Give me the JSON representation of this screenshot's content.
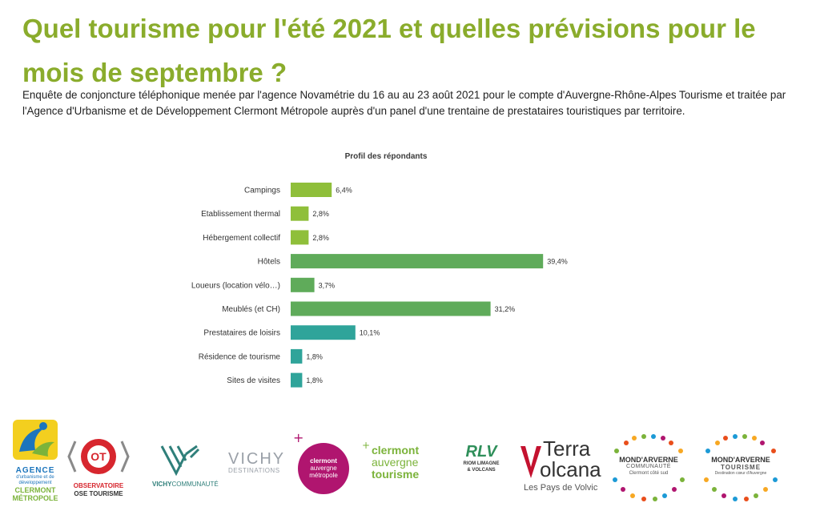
{
  "title": "Quel tourisme pour l'été 2021 et quelles prévisions pour le mois de septembre ?",
  "intro": "Enquête de conjoncture téléphonique menée par l'agence Novamétrie du 16 au au 23 août 2021 pour le compte d'Auvergne-Rhône-Alpes Tourisme et traitée par l'Agence d'Urbanisme et de Développement Clermont Métropole auprès d'un panel d'une trentaine de prestataires touristiques par territoire.",
  "chart_data": {
    "type": "bar",
    "orientation": "horizontal",
    "title": "Profil des répondants",
    "categories": [
      "Campings",
      "Etablissement thermal",
      "Hébergement collectif",
      "Hôtels",
      "Loueurs (location vélo…)",
      "Meublés (et CH)",
      "Prestataires de loisirs",
      "Résidence de tourisme",
      "Sites de visites"
    ],
    "values": [
      6.4,
      2.8,
      2.8,
      39.4,
      3.7,
      31.2,
      10.1,
      1.8,
      1.8
    ],
    "value_labels": [
      "6,4%",
      "2,8%",
      "2,8%",
      "39,4%",
      "3,7%",
      "31,2%",
      "10,1%",
      "1,8%",
      "1,8%"
    ],
    "colors": [
      "#8fbf3a",
      "#8fbf3a",
      "#8fbf3a",
      "#5fab5a",
      "#5fab5a",
      "#5fab5a",
      "#2fa49a",
      "#2fa49a",
      "#2fa49a"
    ],
    "xlim": [
      0,
      40
    ],
    "grid": false,
    "legend": false
  },
  "logos": {
    "agence": {
      "lines": [
        "AGENCE",
        "d'urbanisme et de",
        "développement",
        "CLERMONT",
        "MÉTROPOLE"
      ]
    },
    "observatoire": {
      "badge": "OT",
      "lines": [
        "OBSERVATOIRE",
        "OSE TOURISME"
      ]
    },
    "vichy_communaute": {
      "prefix": "VICHY",
      "suffix": "COMMUNAUTÉ"
    },
    "vichy_destinations": {
      "top": "VICHY",
      "bottom": "DESTINATIONS"
    },
    "clermont_metropole": {
      "lines": [
        "clermont",
        "auvergne",
        "métropole"
      ]
    },
    "clermont_tourisme": {
      "lines": [
        "clermont",
        "auvergne",
        "tourisme"
      ]
    },
    "riom": {
      "mark": "RLV",
      "lines": [
        "RIOM LIMAGNE",
        "& VOLCANS"
      ]
    },
    "terra_volcana": {
      "top": "Terra",
      "bottom": "olcana",
      "mark": "V",
      "tagline": "Les Pays de Volvic"
    },
    "mond_arverne_communaute": {
      "lines": [
        "MOND'ARVERNE",
        "COMMUNAUTÉ",
        "Clermont côté sud"
      ]
    },
    "mond_arverne_tourisme": {
      "lines": [
        "MOND'ARVERNE",
        "TOURISME",
        "Destination cœur d'Auvergne"
      ]
    },
    "colors": {
      "title": "#8aac2c",
      "agence_blue": "#1c75bc",
      "agence_green": "#7bb33a",
      "red": "#d7262e",
      "teal": "#2f7f7a",
      "magenta": "#b0156f",
      "grey": "#9aa0a8"
    }
  }
}
